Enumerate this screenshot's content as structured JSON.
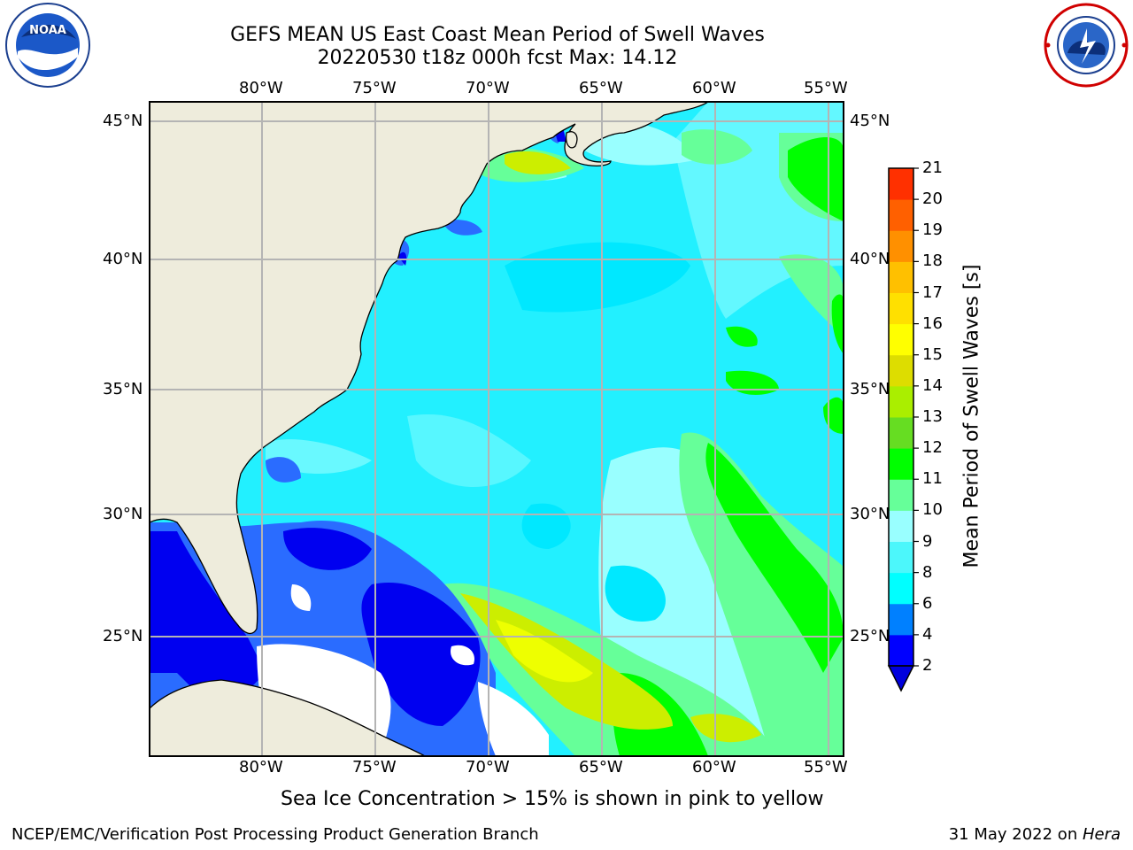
{
  "header": {
    "title_line1": "GEFS MEAN US East Coast Mean Period of Swell Waves",
    "title_line2": "20220530 t18z 000h fcst   Max: 14.12"
  },
  "logos": {
    "left": {
      "name": "noaa-logo",
      "text": "NOAA",
      "ring_text": "NATIONAL OCEANIC AND ATMOSPHERIC ADMINISTRATION · U.S. DEPARTMENT OF COMMERCE"
    },
    "right": {
      "name": "nws-logo",
      "ring_text": "NATIONAL WEATHER SERVICE"
    }
  },
  "map": {
    "longitude_labels": [
      "80°W",
      "75°W",
      "70°W",
      "65°W",
      "60°W",
      "55°W"
    ],
    "latitude_labels": [
      "45°N",
      "40°N",
      "35°N",
      "30°N",
      "25°N"
    ],
    "land_color": "#eeecdc",
    "grid_color": "#b4b4b4"
  },
  "colorbar": {
    "title": "Mean Period of Swell Waves [s]",
    "ticks": [
      "2",
      "4",
      "6",
      "8",
      "9",
      "10",
      "11",
      "12",
      "13",
      "14",
      "15",
      "16",
      "17",
      "18",
      "19",
      "20",
      "21"
    ],
    "colors": [
      "#0000ff",
      "#0080ff",
      "#00ffff",
      "#4cf7fb",
      "#99ffff",
      "#66ff99",
      "#00ff00",
      "#66dd22",
      "#aaee00",
      "#dddd00",
      "#ffff00",
      "#ffe000",
      "#ffc000",
      "#ff9000",
      "#ff6000",
      "#ff3000",
      "#ff0000"
    ],
    "under_color": "#0000dd"
  },
  "caption": "Sea Ice Concentration > 15% is shown in pink to yellow",
  "footer": {
    "left": "NCEP/EMC/Verification Post Processing Product Generation Branch",
    "right_date": "31 May 2022 on ",
    "right_machine": "Hera"
  }
}
